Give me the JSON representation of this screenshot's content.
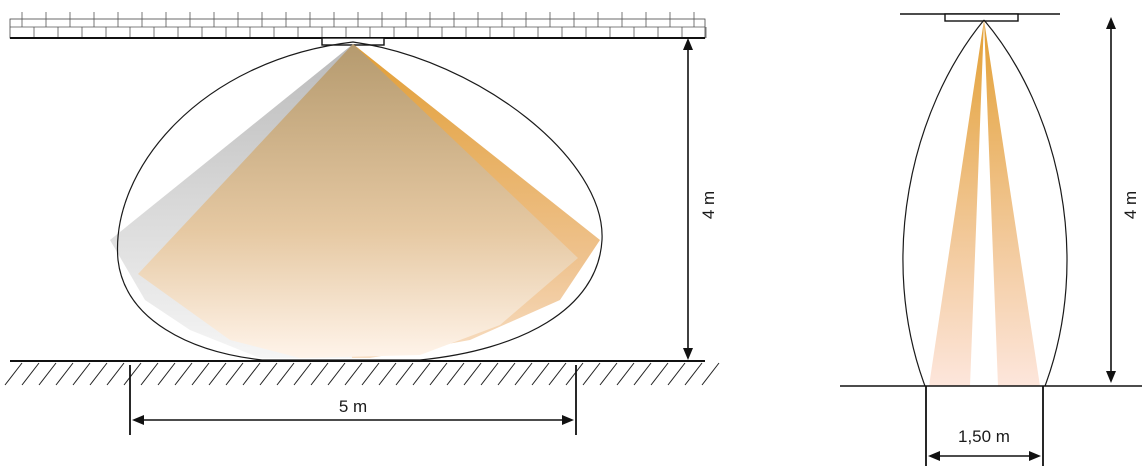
{
  "side_view": {
    "height_label": "4 m",
    "width_label": "5 m"
  },
  "end_view": {
    "height_label": "4 m",
    "width_label": "1,50 m"
  },
  "colors": {
    "beam_orange": "#e8a33a",
    "beam_tan": "#c2aa84",
    "beam_grey": "#c9c9c9",
    "outline": "#1a1a1a"
  }
}
